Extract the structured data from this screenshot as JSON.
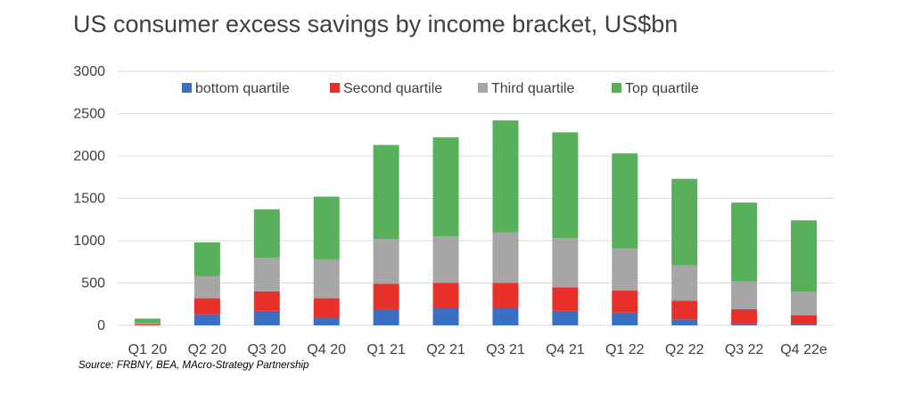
{
  "title": "US consumer excess savings by income bracket, US$bn",
  "source": "Source: FRBNY, BEA, MAcro-Strategy Partnership",
  "colors": {
    "bottom": "#3a6fc4",
    "second": "#e8302a",
    "third": "#a6a6a6",
    "top": "#59b05b",
    "grid": "#d9d9d9",
    "tick_text": "#404040"
  },
  "chart_data": {
    "type": "bar",
    "stacked": true,
    "categories": [
      "Q1 20",
      "Q2 20",
      "Q3 20",
      "Q4 20",
      "Q1 21",
      "Q2 21",
      "Q3 21",
      "Q4 21",
      "Q1 22",
      "Q2 22",
      "Q3 22",
      "Q4 22e"
    ],
    "series": [
      {
        "name": "bottom quartile",
        "values": [
          0,
          130,
          170,
          90,
          190,
          200,
          200,
          170,
          150,
          70,
          20,
          10
        ]
      },
      {
        "name": "Second quartile",
        "values": [
          10,
          190,
          230,
          230,
          300,
          300,
          300,
          280,
          260,
          220,
          170,
          110
        ]
      },
      {
        "name": "Third quartile",
        "values": [
          15,
          260,
          400,
          460,
          530,
          550,
          600,
          580,
          500,
          420,
          330,
          280
        ]
      },
      {
        "name": "Top quartile",
        "values": [
          55,
          400,
          570,
          740,
          1110,
          1170,
          1320,
          1250,
          1120,
          1020,
          930,
          840
        ]
      }
    ],
    "yticks": [
      0,
      500,
      1000,
      1500,
      2000,
      2500,
      3000
    ],
    "ylim": [
      0,
      3000
    ],
    "grid": true,
    "legend_position": "top"
  }
}
